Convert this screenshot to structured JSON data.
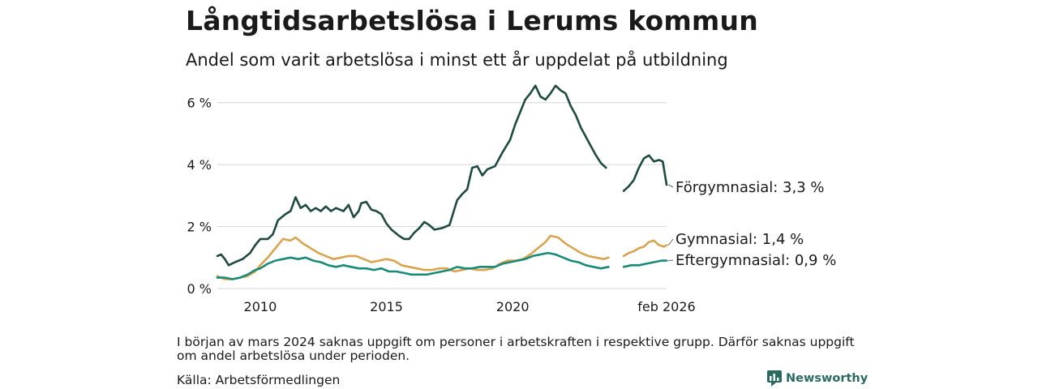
{
  "header": {
    "title": "Långtidsarbetslösa i Lerums kommun",
    "subtitle": "Andel som varit arbetslösa i minst ett år uppdelat på utbildning"
  },
  "footer": {
    "note": "I början av mars 2024 saknas uppgift om personer i arbetskraften i respektive grupp. Därför saknas uppgift om andel arbetslösa under perioden.",
    "source": "Källa: Arbetsförmedlingen",
    "brand": "Newsworthy"
  },
  "chart_data": {
    "type": "line",
    "title": "Långtidsarbetslösa i Lerums kommun",
    "ylim": [
      0,
      6.7
    ],
    "xlim": [
      2008.3,
      2026.1
    ],
    "y_ticks": [
      0,
      2,
      4,
      6
    ],
    "y_tick_labels": [
      "0 %",
      "2 %",
      "4 %",
      "6 %"
    ],
    "x_ticks": [
      2010,
      2015,
      2020,
      2026.1
    ],
    "x_tick_labels": [
      "2010",
      "2015",
      "2020",
      "feb 2026"
    ],
    "grid": true,
    "gap": [
      2024.0,
      2024.4
    ],
    "series": [
      {
        "name": "Förgymnasial",
        "label": "Förgymnasial: 3,3 %",
        "color": "#1f4a3f",
        "points": [
          [
            2008.3,
            1.05
          ],
          [
            2008.45,
            1.1
          ],
          [
            2008.6,
            0.95
          ],
          [
            2008.75,
            0.75
          ],
          [
            2009.0,
            0.85
          ],
          [
            2009.3,
            0.95
          ],
          [
            2009.6,
            1.15
          ],
          [
            2009.8,
            1.4
          ],
          [
            2010.0,
            1.6
          ],
          [
            2010.3,
            1.6
          ],
          [
            2010.5,
            1.75
          ],
          [
            2010.7,
            2.2
          ],
          [
            2011.0,
            2.4
          ],
          [
            2011.2,
            2.5
          ],
          [
            2011.4,
            2.95
          ],
          [
            2011.6,
            2.6
          ],
          [
            2011.8,
            2.7
          ],
          [
            2012.0,
            2.5
          ],
          [
            2012.2,
            2.6
          ],
          [
            2012.4,
            2.5
          ],
          [
            2012.6,
            2.65
          ],
          [
            2012.8,
            2.5
          ],
          [
            2013.0,
            2.6
          ],
          [
            2013.3,
            2.5
          ],
          [
            2013.5,
            2.7
          ],
          [
            2013.7,
            2.3
          ],
          [
            2013.9,
            2.5
          ],
          [
            2014.0,
            2.75
          ],
          [
            2014.2,
            2.8
          ],
          [
            2014.4,
            2.55
          ],
          [
            2014.6,
            2.5
          ],
          [
            2014.8,
            2.4
          ],
          [
            2015.0,
            2.1
          ],
          [
            2015.2,
            1.9
          ],
          [
            2015.5,
            1.7
          ],
          [
            2015.7,
            1.6
          ],
          [
            2015.9,
            1.6
          ],
          [
            2016.1,
            1.8
          ],
          [
            2016.3,
            1.95
          ],
          [
            2016.5,
            2.15
          ],
          [
            2016.7,
            2.05
          ],
          [
            2016.9,
            1.9
          ],
          [
            2017.2,
            1.95
          ],
          [
            2017.5,
            2.05
          ],
          [
            2017.8,
            2.85
          ],
          [
            2018.0,
            3.05
          ],
          [
            2018.2,
            3.2
          ],
          [
            2018.4,
            3.9
          ],
          [
            2018.6,
            3.95
          ],
          [
            2018.8,
            3.65
          ],
          [
            2019.0,
            3.85
          ],
          [
            2019.3,
            3.95
          ],
          [
            2019.6,
            4.4
          ],
          [
            2019.9,
            4.8
          ],
          [
            2020.1,
            5.3
          ],
          [
            2020.3,
            5.7
          ],
          [
            2020.5,
            6.1
          ],
          [
            2020.7,
            6.3
          ],
          [
            2020.9,
            6.55
          ],
          [
            2021.1,
            6.2
          ],
          [
            2021.3,
            6.1
          ],
          [
            2021.5,
            6.3
          ],
          [
            2021.7,
            6.55
          ],
          [
            2021.9,
            6.4
          ],
          [
            2022.1,
            6.3
          ],
          [
            2022.3,
            5.9
          ],
          [
            2022.5,
            5.6
          ],
          [
            2022.7,
            5.2
          ],
          [
            2022.9,
            4.9
          ],
          [
            2023.1,
            4.6
          ],
          [
            2023.3,
            4.3
          ],
          [
            2023.5,
            4.05
          ],
          [
            2023.7,
            3.9
          ]
        ],
        "points2": [
          [
            2024.4,
            3.15
          ],
          [
            2024.6,
            3.3
          ],
          [
            2024.8,
            3.5
          ],
          [
            2025.0,
            3.9
          ],
          [
            2025.2,
            4.2
          ],
          [
            2025.4,
            4.3
          ],
          [
            2025.6,
            4.1
          ],
          [
            2025.8,
            4.15
          ],
          [
            2025.95,
            4.1
          ],
          [
            2026.1,
            3.35
          ]
        ]
      },
      {
        "name": "Gymnasial",
        "label": "Gymnasial: 1,4 %",
        "color": "#d9a44e",
        "points": [
          [
            2008.3,
            0.4
          ],
          [
            2008.6,
            0.3
          ],
          [
            2008.9,
            0.3
          ],
          [
            2009.2,
            0.35
          ],
          [
            2009.5,
            0.4
          ],
          [
            2009.8,
            0.55
          ],
          [
            2010.0,
            0.75
          ],
          [
            2010.3,
            1.0
          ],
          [
            2010.6,
            1.3
          ],
          [
            2010.9,
            1.6
          ],
          [
            2011.2,
            1.55
          ],
          [
            2011.4,
            1.65
          ],
          [
            2011.7,
            1.45
          ],
          [
            2012.0,
            1.3
          ],
          [
            2012.3,
            1.15
          ],
          [
            2012.6,
            1.05
          ],
          [
            2012.9,
            0.95
          ],
          [
            2013.2,
            1.0
          ],
          [
            2013.5,
            1.05
          ],
          [
            2013.8,
            1.05
          ],
          [
            2014.1,
            0.95
          ],
          [
            2014.4,
            0.85
          ],
          [
            2014.7,
            0.9
          ],
          [
            2015.0,
            0.95
          ],
          [
            2015.3,
            0.9
          ],
          [
            2015.6,
            0.75
          ],
          [
            2015.9,
            0.7
          ],
          [
            2016.2,
            0.65
          ],
          [
            2016.5,
            0.6
          ],
          [
            2016.8,
            0.6
          ],
          [
            2017.1,
            0.65
          ],
          [
            2017.4,
            0.65
          ],
          [
            2017.7,
            0.55
          ],
          [
            2018.0,
            0.6
          ],
          [
            2018.3,
            0.65
          ],
          [
            2018.6,
            0.6
          ],
          [
            2018.9,
            0.6
          ],
          [
            2019.2,
            0.65
          ],
          [
            2019.5,
            0.8
          ],
          [
            2019.8,
            0.9
          ],
          [
            2020.1,
            0.9
          ],
          [
            2020.4,
            0.95
          ],
          [
            2020.7,
            1.1
          ],
          [
            2021.0,
            1.3
          ],
          [
            2021.3,
            1.5
          ],
          [
            2021.5,
            1.7
          ],
          [
            2021.8,
            1.65
          ],
          [
            2022.1,
            1.45
          ],
          [
            2022.4,
            1.3
          ],
          [
            2022.7,
            1.15
          ],
          [
            2023.0,
            1.05
          ],
          [
            2023.3,
            1.0
          ],
          [
            2023.6,
            0.95
          ],
          [
            2023.8,
            1.0
          ]
        ],
        "points2": [
          [
            2024.4,
            1.05
          ],
          [
            2024.6,
            1.15
          ],
          [
            2024.8,
            1.2
          ],
          [
            2025.0,
            1.3
          ],
          [
            2025.2,
            1.35
          ],
          [
            2025.4,
            1.5
          ],
          [
            2025.6,
            1.55
          ],
          [
            2025.8,
            1.4
          ],
          [
            2026.0,
            1.35
          ],
          [
            2026.1,
            1.4
          ]
        ]
      },
      {
        "name": "Eftergymnasial",
        "label": "Eftergymnasial: 0,9 %",
        "color": "#1a8a78",
        "points": [
          [
            2008.3,
            0.35
          ],
          [
            2008.6,
            0.35
          ],
          [
            2008.9,
            0.3
          ],
          [
            2009.2,
            0.35
          ],
          [
            2009.5,
            0.45
          ],
          [
            2009.8,
            0.6
          ],
          [
            2010.0,
            0.65
          ],
          [
            2010.3,
            0.8
          ],
          [
            2010.6,
            0.9
          ],
          [
            2010.9,
            0.95
          ],
          [
            2011.2,
            1.0
          ],
          [
            2011.5,
            0.95
          ],
          [
            2011.8,
            1.0
          ],
          [
            2012.1,
            0.9
          ],
          [
            2012.4,
            0.85
          ],
          [
            2012.7,
            0.75
          ],
          [
            2013.0,
            0.7
          ],
          [
            2013.3,
            0.75
          ],
          [
            2013.6,
            0.7
          ],
          [
            2013.9,
            0.65
          ],
          [
            2014.2,
            0.65
          ],
          [
            2014.5,
            0.6
          ],
          [
            2014.8,
            0.65
          ],
          [
            2015.1,
            0.55
          ],
          [
            2015.4,
            0.55
          ],
          [
            2015.7,
            0.5
          ],
          [
            2016.0,
            0.45
          ],
          [
            2016.3,
            0.45
          ],
          [
            2016.6,
            0.45
          ],
          [
            2016.9,
            0.5
          ],
          [
            2017.2,
            0.55
          ],
          [
            2017.5,
            0.6
          ],
          [
            2017.8,
            0.7
          ],
          [
            2018.1,
            0.65
          ],
          [
            2018.4,
            0.65
          ],
          [
            2018.7,
            0.7
          ],
          [
            2019.0,
            0.7
          ],
          [
            2019.3,
            0.7
          ],
          [
            2019.6,
            0.8
          ],
          [
            2019.9,
            0.85
          ],
          [
            2020.2,
            0.9
          ],
          [
            2020.5,
            0.95
          ],
          [
            2020.8,
            1.05
          ],
          [
            2021.1,
            1.1
          ],
          [
            2021.4,
            1.15
          ],
          [
            2021.7,
            1.1
          ],
          [
            2022.0,
            1.0
          ],
          [
            2022.3,
            0.9
          ],
          [
            2022.6,
            0.85
          ],
          [
            2022.9,
            0.75
          ],
          [
            2023.2,
            0.7
          ],
          [
            2023.5,
            0.65
          ],
          [
            2023.8,
            0.7
          ]
        ],
        "points2": [
          [
            2024.4,
            0.7
          ],
          [
            2024.7,
            0.75
          ],
          [
            2025.0,
            0.75
          ],
          [
            2025.3,
            0.8
          ],
          [
            2025.6,
            0.85
          ],
          [
            2025.9,
            0.9
          ],
          [
            2026.1,
            0.9
          ]
        ]
      }
    ]
  }
}
